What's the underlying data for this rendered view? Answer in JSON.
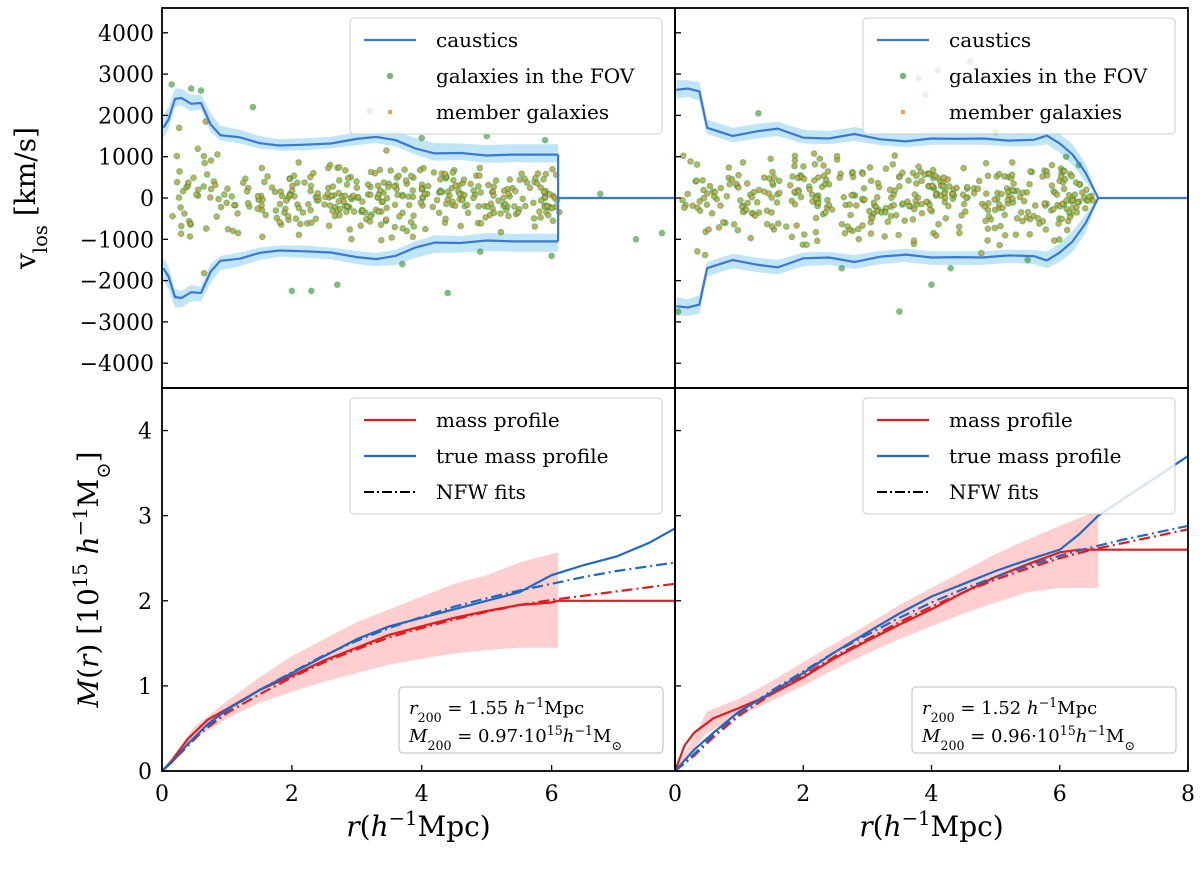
{
  "chart_data": [
    {
      "id": "vlos_left",
      "type": "scatter",
      "panel": "top-left",
      "ylabel": "v_los [km/s]",
      "xlim": [
        0,
        7.9
      ],
      "ylim": [
        -4600,
        4600
      ],
      "yticks": [
        4000,
        3000,
        2000,
        1000,
        0,
        -1000,
        -2000,
        -3000,
        -4000
      ],
      "ytick_labels": [
        "4000",
        "3000",
        "2000",
        "1000",
        "0",
        "−1000",
        "−2000",
        "−3000",
        "−4000"
      ],
      "legend": {
        "placement": "top-right",
        "entries": [
          "caustics",
          "galaxies in the FOV",
          "member galaxies"
        ]
      },
      "caustic": {
        "r": [
          0.02,
          0.1,
          0.2,
          0.3,
          0.45,
          0.6,
          0.75,
          0.9,
          1.2,
          1.5,
          1.8,
          2.2,
          2.6,
          3.0,
          3.3,
          3.6,
          3.9,
          4.2,
          4.6,
          5.0,
          5.4,
          5.8,
          6.1
        ],
        "v": [
          1700,
          1900,
          2400,
          2420,
          2280,
          2300,
          1780,
          1520,
          1470,
          1330,
          1270,
          1290,
          1320,
          1430,
          1480,
          1400,
          1200,
          1080,
          1090,
          1030,
          1050,
          1050,
          1050
        ],
        "band_lower": [
          1450,
          1650,
          2200,
          2250,
          2100,
          2150,
          1600,
          1400,
          1320,
          1200,
          1150,
          1150,
          1200,
          1280,
          1330,
          1250,
          1050,
          900,
          920,
          850,
          870,
          860,
          870
        ],
        "band_upper": [
          2000,
          2200,
          2650,
          2650,
          2500,
          2500,
          2050,
          1750,
          1650,
          1500,
          1420,
          1450,
          1480,
          1600,
          1650,
          1620,
          1450,
          1330,
          1320,
          1280,
          1300,
          1300,
          1300
        ],
        "tail_r": [
          6.1,
          7.9
        ],
        "tail_v": [
          0,
          0
        ]
      },
      "galaxies": {
        "n_members": 370,
        "r_max": 6.1,
        "seed": 11,
        "outliers": [
          [
            0.15,
            2750
          ],
          [
            0.45,
            2650
          ],
          [
            2.0,
            -2250
          ],
          [
            2.3,
            -2250
          ],
          [
            1.4,
            2200
          ],
          [
            3.2,
            2100
          ],
          [
            4.4,
            -2300
          ],
          [
            5.0,
            1500
          ],
          [
            6.0,
            -1400
          ],
          [
            6.75,
            100
          ],
          [
            7.3,
            -1000
          ],
          [
            7.7,
            -850
          ],
          [
            5.9,
            1400
          ],
          [
            4.9,
            -1300
          ],
          [
            2.7,
            -2100
          ],
          [
            0.6,
            2600
          ],
          [
            3.7,
            -1600
          ],
          [
            4.0,
            1450
          ]
        ]
      },
      "show_y_ticklabels": true
    },
    {
      "id": "vlos_right",
      "type": "scatter",
      "panel": "top-right",
      "xlim": [
        0,
        8
      ],
      "ylim": [
        -4600,
        4600
      ],
      "legend": {
        "placement": "top-right",
        "entries": [
          "caustics",
          "galaxies in the FOV",
          "member galaxies"
        ]
      },
      "caustic": {
        "r": [
          0.02,
          0.2,
          0.38,
          0.5,
          0.7,
          0.9,
          1.3,
          1.6,
          2.0,
          2.4,
          2.8,
          3.2,
          3.6,
          4.0,
          4.4,
          4.8,
          5.2,
          5.6,
          5.8,
          6.0,
          6.2,
          6.4,
          6.6
        ],
        "v": [
          2620,
          2650,
          2580,
          1700,
          1600,
          1500,
          1620,
          1680,
          1460,
          1440,
          1550,
          1420,
          1370,
          1440,
          1430,
          1440,
          1390,
          1410,
          1510,
          1320,
          1050,
          620,
          0
        ],
        "band_lower": [
          2400,
          2450,
          2350,
          1550,
          1450,
          1350,
          1450,
          1500,
          1320,
          1300,
          1380,
          1280,
          1230,
          1290,
          1290,
          1290,
          1250,
          1260,
          1300,
          1100,
          800,
          400,
          0
        ],
        "band_upper": [
          2850,
          2850,
          2800,
          1900,
          1800,
          1700,
          1800,
          1850,
          1650,
          1620,
          1720,
          1600,
          1550,
          1620,
          1620,
          1620,
          1570,
          1600,
          1700,
          1550,
          1300,
          850,
          0
        ],
        "tail_r": [
          6.6,
          8
        ],
        "tail_v": [
          0,
          0
        ]
      },
      "galaxies": {
        "n_members": 420,
        "r_max": 6.5,
        "seed": 29,
        "outliers": [
          [
            4.6,
            3300
          ],
          [
            3.8,
            2900
          ],
          [
            3.9,
            2500
          ],
          [
            4.8,
            2900
          ],
          [
            3.5,
            -2750
          ],
          [
            5.3,
            3000
          ],
          [
            4.1,
            3100
          ],
          [
            4.0,
            -2100
          ],
          [
            0.05,
            -2750
          ],
          [
            1.3,
            2050
          ],
          [
            2.6,
            -1700
          ],
          [
            5.5,
            -1500
          ],
          [
            6.3,
            800
          ],
          [
            6.1,
            1000
          ],
          [
            5.0,
            1600
          ],
          [
            4.3,
            -1700
          ]
        ]
      },
      "show_y_ticklabels": false
    },
    {
      "id": "mass_left",
      "type": "line",
      "panel": "bottom-left",
      "xlabel": "r(h^-1 Mpc)",
      "ylabel": "M(r) [10^15 h^-1 M_sun]",
      "xlim": [
        0,
        7.9
      ],
      "ylim": [
        0,
        4.5
      ],
      "xticks": [
        0,
        2,
        4,
        6
      ],
      "yticks": [
        0,
        1,
        2,
        3,
        4
      ],
      "legend": {
        "placement": "top-right",
        "entries": [
          "mass profile",
          "true mass profile",
          "NFW fits"
        ]
      },
      "annotation": [
        "r200 = 1.55 h^-1 Mpc",
        "M200 = 0.97·10^15 h^-1 M_sun"
      ],
      "series": [
        {
          "name": "mass profile",
          "color": "#e41a1c",
          "style": "solid",
          "x": [
            0,
            0.15,
            0.4,
            0.7,
            1.0,
            1.5,
            2.0,
            2.5,
            3.0,
            3.5,
            4.0,
            4.5,
            5.0,
            5.5,
            6.0,
            6.1,
            7.9
          ],
          "y": [
            0,
            0.12,
            0.38,
            0.6,
            0.73,
            0.95,
            1.12,
            1.3,
            1.45,
            1.6,
            1.7,
            1.8,
            1.88,
            1.95,
            1.98,
            2.0,
            2.0
          ]
        },
        {
          "name": "mass band",
          "color": "#ffb3b3",
          "style": "band",
          "x": [
            0,
            0.5,
            1.0,
            1.5,
            2.0,
            2.5,
            3.0,
            3.5,
            4.0,
            4.5,
            5.0,
            5.5,
            6.0,
            6.1
          ],
          "lower": [
            0,
            0.38,
            0.62,
            0.8,
            0.93,
            1.05,
            1.15,
            1.25,
            1.32,
            1.38,
            1.42,
            1.45,
            1.45,
            1.45
          ],
          "upper": [
            0,
            0.52,
            0.82,
            1.1,
            1.35,
            1.55,
            1.75,
            1.9,
            2.05,
            2.2,
            2.3,
            2.45,
            2.55,
            2.57
          ]
        },
        {
          "name": "true mass profile",
          "color": "#1f68c4",
          "style": "solid",
          "x": [
            0,
            0.15,
            0.4,
            0.7,
            1.0,
            1.5,
            2.0,
            2.5,
            3.0,
            3.5,
            4.0,
            4.5,
            5.0,
            5.5,
            6.0,
            6.5,
            7.0,
            7.5,
            7.9
          ],
          "y": [
            0,
            0.1,
            0.32,
            0.55,
            0.72,
            0.95,
            1.15,
            1.35,
            1.55,
            1.7,
            1.8,
            1.9,
            2.0,
            2.1,
            2.3,
            2.42,
            2.52,
            2.68,
            2.85
          ]
        },
        {
          "name": "NFW fit (red)",
          "color": "#e41a1c",
          "style": "dashdot",
          "x": [
            0,
            0.3,
            0.6,
            1.0,
            1.5,
            2.0,
            2.5,
            3.0,
            3.5,
            4.0,
            4.5,
            5.0,
            5.5,
            6.0,
            6.5,
            7.0,
            7.9
          ],
          "y": [
            0,
            0.22,
            0.45,
            0.68,
            0.9,
            1.1,
            1.28,
            1.43,
            1.57,
            1.68,
            1.78,
            1.87,
            1.95,
            2.01,
            2.06,
            2.11,
            2.2
          ]
        },
        {
          "name": "NFW fit (blue)",
          "color": "#1f68c4",
          "style": "dashdot",
          "x": [
            0,
            0.3,
            0.6,
            1.0,
            1.5,
            2.0,
            2.5,
            3.0,
            3.5,
            4.0,
            4.5,
            5.0,
            5.5,
            6.0,
            6.5,
            7.0,
            7.9
          ],
          "y": [
            0,
            0.23,
            0.47,
            0.71,
            0.95,
            1.16,
            1.36,
            1.53,
            1.68,
            1.81,
            1.93,
            2.03,
            2.12,
            2.2,
            2.28,
            2.35,
            2.45
          ]
        }
      ],
      "show_y_ticklabels": true
    },
    {
      "id": "mass_right",
      "type": "line",
      "panel": "bottom-right",
      "xlabel": "r(h^-1 Mpc)",
      "xlim": [
        0,
        8
      ],
      "ylim": [
        0,
        4.5
      ],
      "xticks": [
        0,
        2,
        4,
        6,
        8
      ],
      "legend": {
        "placement": "top-right",
        "entries": [
          "mass profile",
          "true mass profile",
          "NFW fits"
        ]
      },
      "annotation": [
        "r200 = 1.52 h^-1 Mpc",
        "M200 = 0.96·10^15 h^-1 M_sun"
      ],
      "series": [
        {
          "name": "mass profile",
          "color": "#e41a1c",
          "style": "solid",
          "x": [
            0,
            0.15,
            0.3,
            0.6,
            1.0,
            1.5,
            2.0,
            2.5,
            3.0,
            3.5,
            4.0,
            4.5,
            5.0,
            5.5,
            6.0,
            6.3,
            6.6,
            8.0
          ],
          "y": [
            0,
            0.3,
            0.45,
            0.62,
            0.74,
            0.9,
            1.1,
            1.33,
            1.53,
            1.72,
            1.9,
            2.1,
            2.28,
            2.43,
            2.57,
            2.6,
            2.6,
            2.6
          ]
        },
        {
          "name": "mass band",
          "color": "#ffb3b3",
          "style": "band",
          "x": [
            0,
            0.5,
            1.0,
            1.5,
            2.0,
            2.5,
            3.0,
            3.5,
            4.0,
            4.5,
            5.0,
            5.5,
            6.0,
            6.4,
            6.6
          ],
          "lower": [
            0,
            0.45,
            0.65,
            0.82,
            1.0,
            1.2,
            1.38,
            1.55,
            1.7,
            1.85,
            1.98,
            2.1,
            2.15,
            2.15,
            2.15
          ],
          "upper": [
            0,
            0.7,
            0.85,
            1.05,
            1.28,
            1.5,
            1.72,
            1.95,
            2.15,
            2.35,
            2.55,
            2.72,
            2.88,
            3.0,
            3.05
          ]
        },
        {
          "name": "true mass profile",
          "color": "#1f68c4",
          "style": "solid",
          "x": [
            0,
            0.3,
            0.6,
            1.0,
            1.5,
            2.0,
            2.5,
            3.0,
            3.5,
            4.0,
            4.5,
            5.0,
            5.5,
            6.0,
            6.3,
            6.6,
            7.0,
            7.5,
            8.0
          ],
          "y": [
            0,
            0.25,
            0.45,
            0.7,
            0.92,
            1.15,
            1.4,
            1.63,
            1.85,
            2.05,
            2.2,
            2.35,
            2.48,
            2.6,
            2.78,
            3.0,
            3.2,
            3.45,
            3.7
          ]
        },
        {
          "name": "NFW fit (red)",
          "color": "#e41a1c",
          "style": "dashdot",
          "x": [
            0,
            0.3,
            0.6,
            1.0,
            1.5,
            2.0,
            2.5,
            3.0,
            3.5,
            4.0,
            4.5,
            5.0,
            5.5,
            6.0,
            6.5,
            7.0,
            7.5,
            8.0
          ],
          "y": [
            0,
            0.18,
            0.4,
            0.65,
            0.9,
            1.12,
            1.35,
            1.55,
            1.75,
            1.93,
            2.1,
            2.25,
            2.38,
            2.5,
            2.6,
            2.68,
            2.76,
            2.84
          ]
        },
        {
          "name": "NFW fit (blue)",
          "color": "#1f68c4",
          "style": "dashdot",
          "x": [
            0,
            0.3,
            0.6,
            1.0,
            1.5,
            2.0,
            2.5,
            3.0,
            3.5,
            4.0,
            4.5,
            5.0,
            5.5,
            6.0,
            6.5,
            7.0,
            7.5,
            8.0
          ],
          "y": [
            0,
            0.2,
            0.43,
            0.68,
            0.94,
            1.17,
            1.4,
            1.6,
            1.8,
            1.98,
            2.14,
            2.28,
            2.41,
            2.53,
            2.63,
            2.72,
            2.8,
            2.88
          ]
        }
      ],
      "show_y_ticklabels": false
    }
  ],
  "colors": {
    "caustic": "#3a78d8",
    "caustic_band": "#a9dcf3",
    "galaxy_fov": "#3a9a3a",
    "member": "#f5a23c",
    "mass": "#e41a1c",
    "true_mass": "#1f68c4",
    "mass_band": "#ffc7c7"
  }
}
